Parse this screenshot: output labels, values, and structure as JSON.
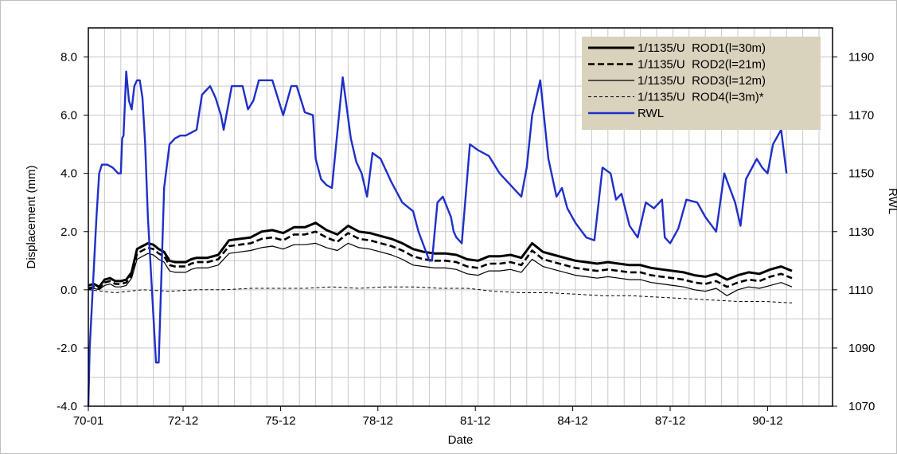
{
  "chart_data": {
    "type": "line",
    "xlabel": "Date",
    "ylabel": "Displacement (mm)",
    "y2label": "RWL",
    "x_ticks": [
      "70-01",
      "72-12",
      "75-12",
      "78-12",
      "81-12",
      "84-12",
      "87-12",
      "90-12"
    ],
    "x_tick_values": [
      0,
      35,
      71,
      107,
      143,
      179,
      215,
      251
    ],
    "xlim": [
      0,
      275
    ],
    "ylim": [
      -4.0,
      9.0
    ],
    "y_ticks": [
      "8.0",
      "6.0",
      "4.0",
      "2.0",
      "0.0",
      "-2.0",
      "-4.0"
    ],
    "y_tick_values": [
      8.0,
      6.0,
      4.0,
      2.0,
      0.0,
      -2.0,
      -4.0
    ],
    "y2lim": [
      1070,
      1200
    ],
    "y2_ticks": [
      "1190",
      "1170",
      "1150",
      "1130",
      "1110",
      "1090",
      "1070"
    ],
    "y2_tick_values": [
      1190,
      1170,
      1150,
      1130,
      1110,
      1090,
      1070
    ],
    "grid": true,
    "legend_position": "top-right",
    "series": [
      {
        "name": "1/1135/U  ROD1(l=30m)",
        "axis": "left",
        "color": "#000000",
        "style": "solid-thick",
        "x": [
          0,
          2,
          4,
          6,
          8,
          10,
          12,
          14,
          16,
          18,
          20,
          22,
          24,
          26,
          28,
          30,
          32,
          34,
          36,
          38,
          40,
          44,
          48,
          52,
          56,
          60,
          64,
          68,
          72,
          76,
          80,
          84,
          88,
          92,
          96,
          100,
          104,
          108,
          112,
          116,
          120,
          124,
          128,
          132,
          136,
          140,
          144,
          148,
          152,
          156,
          160,
          164,
          168,
          172,
          176,
          180,
          184,
          188,
          192,
          196,
          200,
          204,
          208,
          212,
          216,
          220,
          224,
          228,
          232,
          236,
          240,
          244,
          248,
          252,
          256,
          260
        ],
        "y": [
          0.15,
          0.2,
          0.1,
          0.35,
          0.4,
          0.3,
          0.3,
          0.35,
          0.6,
          1.4,
          1.5,
          1.6,
          1.55,
          1.4,
          1.3,
          1.0,
          0.95,
          0.95,
          0.95,
          1.05,
          1.1,
          1.1,
          1.2,
          1.7,
          1.75,
          1.8,
          2.0,
          2.05,
          1.95,
          2.15,
          2.15,
          2.3,
          2.05,
          1.9,
          2.2,
          2.0,
          1.95,
          1.85,
          1.75,
          1.6,
          1.4,
          1.3,
          1.25,
          1.25,
          1.2,
          1.05,
          1.0,
          1.15,
          1.15,
          1.2,
          1.1,
          1.6,
          1.3,
          1.2,
          1.1,
          1.0,
          0.95,
          0.9,
          0.95,
          0.9,
          0.85,
          0.85,
          0.75,
          0.7,
          0.65,
          0.6,
          0.5,
          0.45,
          0.55,
          0.35,
          0.5,
          0.6,
          0.55,
          0.7,
          0.8,
          0.65
        ]
      },
      {
        "name": "1/1135/U  ROD2(l=21m)",
        "axis": "left",
        "color": "#000000",
        "style": "dashed-thick",
        "x": [
          0,
          2,
          4,
          6,
          8,
          10,
          12,
          14,
          16,
          18,
          20,
          22,
          24,
          26,
          28,
          30,
          32,
          34,
          36,
          38,
          40,
          44,
          48,
          52,
          56,
          60,
          64,
          68,
          72,
          76,
          80,
          84,
          88,
          92,
          96,
          100,
          104,
          108,
          112,
          116,
          120,
          124,
          128,
          132,
          136,
          140,
          144,
          148,
          152,
          156,
          160,
          164,
          168,
          172,
          176,
          180,
          184,
          188,
          192,
          196,
          200,
          204,
          208,
          212,
          216,
          220,
          224,
          228,
          232,
          236,
          240,
          244,
          248,
          252,
          256,
          260
        ],
        "y": [
          0.05,
          0.1,
          0.05,
          0.25,
          0.3,
          0.2,
          0.2,
          0.25,
          0.5,
          1.25,
          1.35,
          1.45,
          1.4,
          1.25,
          1.15,
          0.85,
          0.8,
          0.8,
          0.8,
          0.9,
          0.95,
          0.95,
          1.05,
          1.5,
          1.55,
          1.6,
          1.75,
          1.8,
          1.7,
          1.9,
          1.9,
          2.0,
          1.8,
          1.65,
          1.95,
          1.75,
          1.7,
          1.6,
          1.5,
          1.35,
          1.15,
          1.05,
          1.0,
          1.0,
          0.95,
          0.8,
          0.75,
          0.9,
          0.9,
          0.95,
          0.85,
          1.35,
          1.05,
          0.95,
          0.85,
          0.75,
          0.7,
          0.65,
          0.7,
          0.65,
          0.6,
          0.6,
          0.5,
          0.45,
          0.4,
          0.35,
          0.25,
          0.2,
          0.3,
          0.1,
          0.25,
          0.35,
          0.3,
          0.45,
          0.55,
          0.4
        ]
      },
      {
        "name": "1/1135/U  ROD3(l=12m)",
        "axis": "left",
        "color": "#000000",
        "style": "solid-thin",
        "x": [
          0,
          2,
          4,
          6,
          8,
          10,
          12,
          14,
          16,
          18,
          20,
          22,
          24,
          26,
          28,
          30,
          32,
          34,
          36,
          38,
          40,
          44,
          48,
          52,
          56,
          60,
          64,
          68,
          72,
          76,
          80,
          84,
          88,
          92,
          96,
          100,
          104,
          108,
          112,
          116,
          120,
          124,
          128,
          132,
          136,
          140,
          144,
          148,
          152,
          156,
          160,
          164,
          168,
          172,
          176,
          180,
          184,
          188,
          192,
          196,
          200,
          204,
          208,
          212,
          216,
          220,
          224,
          228,
          232,
          236,
          240,
          244,
          248,
          252,
          256,
          260
        ],
        "y": [
          0.0,
          0.05,
          0.0,
          0.15,
          0.2,
          0.1,
          0.1,
          0.15,
          0.4,
          1.05,
          1.15,
          1.25,
          1.2,
          1.05,
          0.95,
          0.65,
          0.6,
          0.6,
          0.6,
          0.7,
          0.75,
          0.75,
          0.85,
          1.25,
          1.3,
          1.35,
          1.45,
          1.5,
          1.4,
          1.55,
          1.55,
          1.6,
          1.45,
          1.35,
          1.6,
          1.45,
          1.4,
          1.3,
          1.2,
          1.05,
          0.85,
          0.8,
          0.75,
          0.75,
          0.7,
          0.55,
          0.5,
          0.65,
          0.65,
          0.7,
          0.6,
          1.05,
          0.8,
          0.7,
          0.6,
          0.5,
          0.45,
          0.4,
          0.45,
          0.4,
          0.35,
          0.35,
          0.25,
          0.2,
          0.15,
          0.1,
          0.0,
          -0.05,
          0.05,
          -0.2,
          0.0,
          0.1,
          0.05,
          0.15,
          0.25,
          0.1
        ]
      },
      {
        "name": "1/1135/U  ROD4(l=3m)*",
        "axis": "left",
        "color": "#000000",
        "style": "dashed-thin",
        "x": [
          0,
          10,
          20,
          30,
          40,
          50,
          60,
          70,
          80,
          90,
          100,
          110,
          120,
          130,
          140,
          150,
          160,
          170,
          180,
          190,
          200,
          210,
          220,
          230,
          240,
          250,
          260
        ],
        "y": [
          0.0,
          -0.1,
          0.0,
          -0.05,
          0.0,
          0.0,
          0.05,
          0.05,
          0.05,
          0.1,
          0.05,
          0.1,
          0.1,
          0.05,
          0.05,
          -0.05,
          -0.1,
          -0.1,
          -0.15,
          -0.2,
          -0.2,
          -0.25,
          -0.3,
          -0.35,
          -0.4,
          -0.4,
          -0.45
        ]
      },
      {
        "name": "RWL",
        "axis": "right",
        "color": "#1f2fc8",
        "style": "solid",
        "x": [
          0,
          0.5,
          1.5,
          3,
          4,
          5,
          7,
          9,
          10,
          11,
          12,
          12.5,
          13,
          14,
          15,
          16,
          17,
          18,
          19,
          20,
          21,
          22,
          25,
          26,
          27,
          28,
          30,
          32,
          34,
          36,
          40,
          42,
          45,
          47,
          49,
          50,
          53,
          55,
          57,
          59,
          61,
          63,
          65,
          68,
          72,
          75,
          77,
          80,
          83,
          84,
          86,
          88,
          90,
          94,
          97,
          99,
          101,
          103,
          105,
          108,
          112,
          116,
          120,
          122,
          124,
          126,
          127,
          129,
          131,
          134,
          135,
          136,
          138,
          141,
          144,
          148,
          152,
          156,
          160,
          162,
          164,
          167,
          170,
          173,
          175,
          177,
          180,
          184,
          187,
          190,
          193,
          195,
          197,
          200,
          203,
          206,
          209,
          212,
          213,
          215,
          218,
          221,
          225,
          228,
          232,
          235,
          239,
          241,
          243,
          247,
          249,
          251,
          253,
          256,
          258
        ],
        "y": [
          1070,
          1090,
          1108,
          1135,
          1150,
          1153,
          1153,
          1152,
          1151,
          1150,
          1150,
          1162,
          1163,
          1185,
          1175,
          1172,
          1180,
          1182,
          1182,
          1176,
          1160,
          1135,
          1085,
          1085,
          1115,
          1145,
          1160,
          1162,
          1163,
          1163,
          1165,
          1177,
          1180,
          1176,
          1170,
          1165,
          1180,
          1180,
          1180,
          1172,
          1175,
          1182,
          1182,
          1182,
          1170,
          1180,
          1180,
          1171,
          1170,
          1155,
          1148,
          1146,
          1145,
          1183,
          1162,
          1154,
          1150,
          1142,
          1157,
          1155,
          1147,
          1140,
          1137,
          1130,
          1125,
          1120,
          1120,
          1140,
          1142,
          1135,
          1130,
          1128,
          1126,
          1160,
          1158,
          1156,
          1150,
          1146,
          1142,
          1152,
          1170,
          1182,
          1155,
          1142,
          1145,
          1138,
          1133,
          1128,
          1127,
          1152,
          1150,
          1141,
          1143,
          1132,
          1128,
          1140,
          1138,
          1141,
          1128,
          1126,
          1131,
          1141,
          1140,
          1135,
          1130,
          1150,
          1140,
          1132,
          1148,
          1155,
          1152,
          1150,
          1160,
          1165,
          1150
        ]
      }
    ]
  }
}
